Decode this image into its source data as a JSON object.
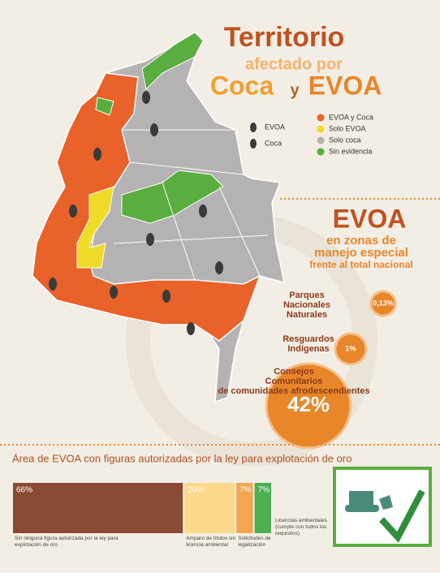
{
  "title": {
    "line1": "Territorio",
    "line2": "afectado por",
    "line3a": "Coca",
    "line3b": "y",
    "line3c": "EVOA"
  },
  "map_legend": {
    "symbols": [
      {
        "label": "EVOA"
      },
      {
        "label": "Coca"
      }
    ],
    "regions": [
      {
        "label": "EVOA y Coca",
        "color": "#e8622a"
      },
      {
        "label": "Solo EVOA",
        "color": "#f0dc28"
      },
      {
        "label": "Solo coca",
        "color": "#b4b2b2"
      },
      {
        "label": "Sin evidencia",
        "color": "#5aae3f"
      }
    ]
  },
  "special_zones": {
    "title": "EVOA",
    "subtitle": [
      "en zonas de",
      "manejo especial",
      "frente al total nacional"
    ],
    "items": [
      {
        "label": "Parques Nacionales Naturales",
        "value": 0.13,
        "value_label": "0,13%"
      },
      {
        "label": "Resguardos Indígenas",
        "value": 1,
        "value_label": "1%"
      },
      {
        "label": "Consejos Comunitarios de comunidades afrodescendientes",
        "value": 42,
        "value_label": "42%"
      }
    ]
  },
  "gold": {
    "title": "Área de EVOA con figuras autorizadas por la ley para explotación de oro",
    "segments": [
      {
        "value": 66,
        "value_label": "66%",
        "label": "Sin ninguna figura autorizada por la ley para explotación de oro",
        "color": "#8b4a36"
      },
      {
        "value": 20,
        "value_label": "20%",
        "label": "Amparo de títulos sin licencia ambiental",
        "color": "#fcd98a"
      },
      {
        "value": 7,
        "value_label": "7%",
        "label": "Solicitudes de legalización",
        "color": "#f3a650"
      },
      {
        "value": 7,
        "value_label": "7%",
        "label": "Licencias ambientales (cumple con todos los requisitos)",
        "color": "#4caf50"
      }
    ]
  }
}
